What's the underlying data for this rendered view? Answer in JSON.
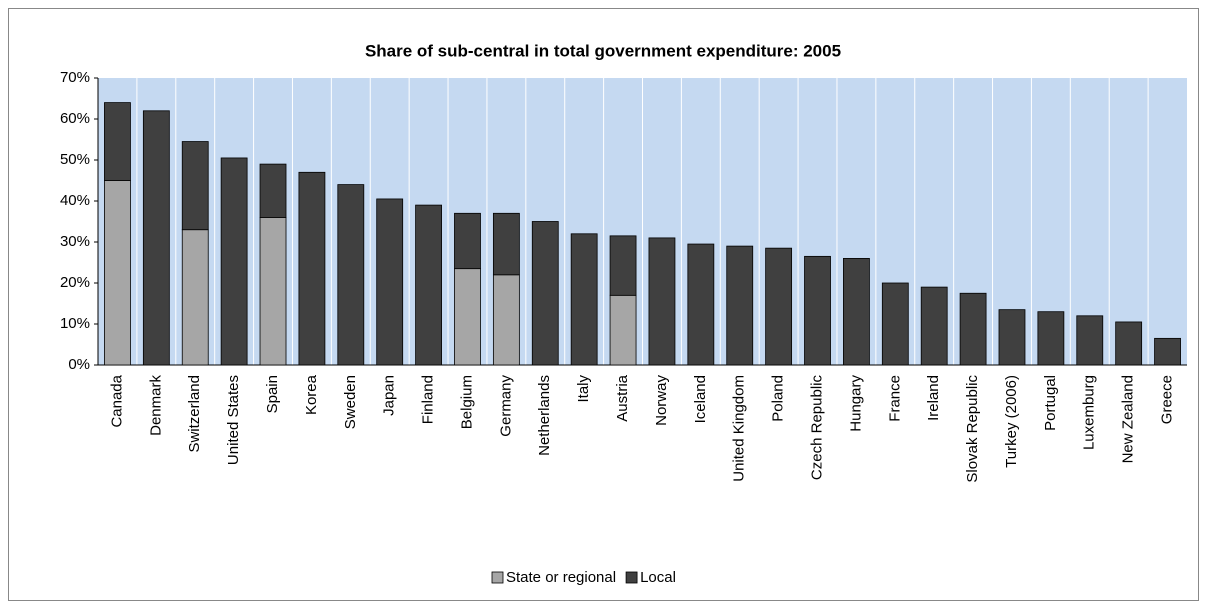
{
  "chart_data": {
    "type": "stacked-bar",
    "title": "Share of sub-central in total government expenditure: 2005",
    "categories": [
      "Canada",
      "Denmark",
      "Switzerland",
      "United States",
      "Spain",
      "Korea",
      "Sweden",
      "Japan",
      "Finland",
      "Belgium",
      "Germany",
      "Netherlands",
      "Italy",
      "Austria",
      "Norway",
      "Iceland",
      "United Kingdom",
      "Poland",
      "Czech Republic",
      "Hungary",
      "France",
      "Ireland",
      "Slovak Republic",
      "Turkey (2006)",
      "Portugal",
      "Luxemburg",
      "New Zealand",
      "Greece"
    ],
    "series": [
      {
        "name": "State or regional",
        "color": "#a6a6a6",
        "values": [
          45,
          0,
          33,
          0,
          36,
          0,
          0,
          0,
          0,
          23.5,
          22,
          0,
          0,
          17,
          0,
          0,
          0,
          0,
          0,
          0,
          0,
          0,
          0,
          0,
          0,
          0,
          0,
          0
        ]
      },
      {
        "name": "Local",
        "color": "#404040",
        "values": [
          19,
          62,
          21.5,
          50.5,
          13,
          47,
          44,
          40.5,
          39,
          13.5,
          15,
          35,
          32,
          14.5,
          31,
          29.5,
          29,
          28.5,
          26.5,
          26,
          20,
          19,
          17.5,
          13.5,
          13,
          12,
          10.5,
          6.5
        ]
      }
    ],
    "ylim": [
      0,
      70
    ],
    "yticks": [
      {
        "value": 0,
        "label": "0%"
      },
      {
        "value": 10,
        "label": "10%"
      },
      {
        "value": 20,
        "label": "20%"
      },
      {
        "value": 30,
        "label": "30%"
      },
      {
        "value": 40,
        "label": "40%"
      },
      {
        "value": 50,
        "label": "50%"
      },
      {
        "value": 60,
        "label": "60%"
      },
      {
        "value": 70,
        "label": "70%"
      }
    ],
    "plot_background": "#c5d9f1",
    "legend": "bottom"
  }
}
